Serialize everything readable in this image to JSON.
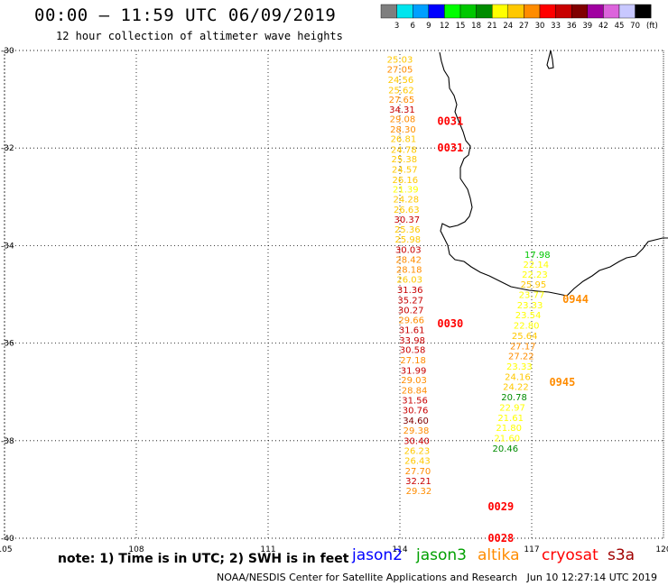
{
  "header": {
    "title": "00:00 – 11:59 UTC 06/09/2019",
    "subtitle": "12 hour collection of altimeter wave heights"
  },
  "legend": {
    "unit": "(ft)",
    "bins": [
      {
        "label": "3",
        "color": "#7f7f7f"
      },
      {
        "label": "6",
        "color": "#00e5ee"
      },
      {
        "label": "9",
        "color": "#00a0ff"
      },
      {
        "label": "12",
        "color": "#0000ff"
      },
      {
        "label": "15",
        "color": "#00ff00"
      },
      {
        "label": "18",
        "color": "#00c800"
      },
      {
        "label": "21",
        "color": "#008c00"
      },
      {
        "label": "24",
        "color": "#ffff00"
      },
      {
        "label": "27",
        "color": "#ffc800"
      },
      {
        "label": "30",
        "color": "#ff8c00"
      },
      {
        "label": "33",
        "color": "#ff0000"
      },
      {
        "label": "36",
        "color": "#c80000"
      },
      {
        "label": "39",
        "color": "#800000"
      },
      {
        "label": "42",
        "color": "#a000a0"
      },
      {
        "label": "45",
        "color": "#dc64dc"
      },
      {
        "label": "70",
        "color": "#c8c8ff"
      },
      {
        "label": "",
        "color": "#000000"
      }
    ]
  },
  "map": {
    "lon_range": [
      105,
      120
    ],
    "lat_range": [
      -40,
      -30
    ],
    "lon_ticks": [
      "105",
      "108",
      "111",
      "114",
      "117",
      "120"
    ],
    "lat_ticks": [
      "-30",
      "-32",
      "-34",
      "-36",
      "-38",
      "-40"
    ],
    "grid": true,
    "time_labels": [
      {
        "text": "0031",
        "lon": 114.85,
        "lat": -31.45,
        "color": "#ff0000"
      },
      {
        "text": "0031",
        "lon": 114.85,
        "lat": -32.0,
        "color": "#ff0000"
      },
      {
        "text": "0030",
        "lon": 114.85,
        "lat": -35.6,
        "color": "#ff0000"
      },
      {
        "text": "0029",
        "lon": 116.0,
        "lat": -39.35,
        "color": "#ff0000"
      },
      {
        "text": "0028",
        "lon": 116.0,
        "lat": -40.0,
        "color": "#ff0000"
      },
      {
        "text": "0944",
        "lon": 117.7,
        "lat": -35.1,
        "color": "#ff8c00"
      },
      {
        "text": "0945",
        "lon": 117.4,
        "lat": -36.8,
        "color": "#ff8c00"
      }
    ],
    "tracks": [
      {
        "name": "track-west",
        "points": [
          {
            "v": "25.03",
            "lon": 114.0,
            "lat": -30.18,
            "color": "#ffc800"
          },
          {
            "v": "27.05",
            "lon": 114.0,
            "lat": -30.38,
            "color": "#ff8c00"
          },
          {
            "v": "24.56",
            "lon": 114.02,
            "lat": -30.59,
            "color": "#ffc800"
          },
          {
            "v": "25.62",
            "lon": 114.03,
            "lat": -30.8,
            "color": "#ffc800"
          },
          {
            "v": "27.65",
            "lon": 114.04,
            "lat": -31.0,
            "color": "#ff8c00"
          },
          {
            "v": "34.31",
            "lon": 114.05,
            "lat": -31.2,
            "color": "#c80000"
          },
          {
            "v": "29.08",
            "lon": 114.06,
            "lat": -31.4,
            "color": "#ff8c00"
          },
          {
            "v": "28.30",
            "lon": 114.07,
            "lat": -31.61,
            "color": "#ff8c00"
          },
          {
            "v": "26.81",
            "lon": 114.08,
            "lat": -31.8,
            "color": "#ffc800"
          },
          {
            "v": "24.78",
            "lon": 114.09,
            "lat": -32.02,
            "color": "#ffc800"
          },
          {
            "v": "25.38",
            "lon": 114.1,
            "lat": -32.22,
            "color": "#ffc800"
          },
          {
            "v": "24.57",
            "lon": 114.11,
            "lat": -32.43,
            "color": "#ffc800"
          },
          {
            "v": "26.16",
            "lon": 114.12,
            "lat": -32.64,
            "color": "#ffc800"
          },
          {
            "v": "21.39",
            "lon": 114.13,
            "lat": -32.84,
            "color": "#ffff00"
          },
          {
            "v": "24.28",
            "lon": 114.14,
            "lat": -33.04,
            "color": "#ffc800"
          },
          {
            "v": "26.63",
            "lon": 114.15,
            "lat": -33.25,
            "color": "#ffc800"
          },
          {
            "v": "30.37",
            "lon": 114.16,
            "lat": -33.46,
            "color": "#c80000"
          },
          {
            "v": "25.36",
            "lon": 114.17,
            "lat": -33.66,
            "color": "#ffc800"
          },
          {
            "v": "25.98",
            "lon": 114.18,
            "lat": -33.86,
            "color": "#ffc800"
          },
          {
            "v": "30.03",
            "lon": 114.19,
            "lat": -34.08,
            "color": "#c80000"
          },
          {
            "v": "28.42",
            "lon": 114.2,
            "lat": -34.28,
            "color": "#ff8c00"
          },
          {
            "v": "28.18",
            "lon": 114.21,
            "lat": -34.48,
            "color": "#ff8c00"
          },
          {
            "v": "26.03",
            "lon": 114.22,
            "lat": -34.69,
            "color": "#ffc800"
          },
          {
            "v": "31.36",
            "lon": 114.23,
            "lat": -34.9,
            "color": "#c80000"
          },
          {
            "v": "35.27",
            "lon": 114.24,
            "lat": -35.11,
            "color": "#c80000"
          },
          {
            "v": "30.27",
            "lon": 114.25,
            "lat": -35.31,
            "color": "#c80000"
          },
          {
            "v": "29.66",
            "lon": 114.26,
            "lat": -35.52,
            "color": "#ff8c00"
          },
          {
            "v": "31.61",
            "lon": 114.27,
            "lat": -35.72,
            "color": "#c80000"
          },
          {
            "v": "33.98",
            "lon": 114.28,
            "lat": -35.93,
            "color": "#c80000"
          },
          {
            "v": "30.58",
            "lon": 114.29,
            "lat": -36.13,
            "color": "#c80000"
          },
          {
            "v": "27.18",
            "lon": 114.3,
            "lat": -36.34,
            "color": "#ff8c00"
          },
          {
            "v": "31.99",
            "lon": 114.31,
            "lat": -36.55,
            "color": "#c80000"
          },
          {
            "v": "29.03",
            "lon": 114.32,
            "lat": -36.75,
            "color": "#ff8c00"
          },
          {
            "v": "28.84",
            "lon": 114.33,
            "lat": -36.96,
            "color": "#ff8c00"
          },
          {
            "v": "31.56",
            "lon": 114.34,
            "lat": -37.16,
            "color": "#c80000"
          },
          {
            "v": "30.76",
            "lon": 114.35,
            "lat": -37.37,
            "color": "#c80000"
          },
          {
            "v": "34.60",
            "lon": 114.36,
            "lat": -37.58,
            "color": "#800000"
          },
          {
            "v": "29.38",
            "lon": 114.37,
            "lat": -37.78,
            "color": "#ff8c00"
          },
          {
            "v": "30.40",
            "lon": 114.38,
            "lat": -37.99,
            "color": "#c80000"
          },
          {
            "v": "26.23",
            "lon": 114.39,
            "lat": -38.2,
            "color": "#ffc800"
          },
          {
            "v": "26.43",
            "lon": 114.4,
            "lat": -38.4,
            "color": "#ffc800"
          },
          {
            "v": "27.70",
            "lon": 114.41,
            "lat": -38.61,
            "color": "#ff8c00"
          },
          {
            "v": "32.21",
            "lon": 114.42,
            "lat": -38.82,
            "color": "#c80000"
          },
          {
            "v": "29.32",
            "lon": 114.43,
            "lat": -39.02,
            "color": "#ff8c00"
          }
        ]
      },
      {
        "name": "track-east",
        "points": [
          {
            "v": "17.98",
            "lon": 117.13,
            "lat": -34.18,
            "color": "#00c800"
          },
          {
            "v": "22.14",
            "lon": 117.1,
            "lat": -34.38,
            "color": "#ffff00"
          },
          {
            "v": "22.23",
            "lon": 117.07,
            "lat": -34.58,
            "color": "#ffff00"
          },
          {
            "v": "25.95",
            "lon": 117.04,
            "lat": -34.79,
            "color": "#ffc800"
          },
          {
            "v": "23.77",
            "lon": 117.0,
            "lat": -35.0,
            "color": "#ffff00"
          },
          {
            "v": "23.33",
            "lon": 116.96,
            "lat": -35.21,
            "color": "#ffff00"
          },
          {
            "v": "23.54",
            "lon": 116.92,
            "lat": -35.42,
            "color": "#ffff00"
          },
          {
            "v": "22.80",
            "lon": 116.88,
            "lat": -35.63,
            "color": "#ffff00"
          },
          {
            "v": "25.64",
            "lon": 116.84,
            "lat": -35.84,
            "color": "#ffc800"
          },
          {
            "v": "27.17",
            "lon": 116.8,
            "lat": -36.05,
            "color": "#ff8c00"
          },
          {
            "v": "27.22",
            "lon": 116.76,
            "lat": -36.26,
            "color": "#ff8c00"
          },
          {
            "v": "23.33",
            "lon": 116.72,
            "lat": -36.47,
            "color": "#ffff00"
          },
          {
            "v": "24.16",
            "lon": 116.68,
            "lat": -36.68,
            "color": "#ffc800"
          },
          {
            "v": "24.22",
            "lon": 116.64,
            "lat": -36.89,
            "color": "#ffc800"
          },
          {
            "v": "20.78",
            "lon": 116.6,
            "lat": -37.1,
            "color": "#008c00"
          },
          {
            "v": "22.97",
            "lon": 116.56,
            "lat": -37.31,
            "color": "#ffff00"
          },
          {
            "v": "21.61",
            "lon": 116.52,
            "lat": -37.52,
            "color": "#ffff00"
          },
          {
            "v": "21.80",
            "lon": 116.48,
            "lat": -37.73,
            "color": "#ffff00"
          },
          {
            "v": "21.60",
            "lon": 116.44,
            "lat": -37.94,
            "color": "#ffff00"
          },
          {
            "v": "20.46",
            "lon": 116.4,
            "lat": -38.15,
            "color": "#008c00"
          }
        ]
      }
    ]
  },
  "footer": {
    "note": "note:  1) Time is in UTC;  2) SWH is in feet",
    "satellites": [
      {
        "name": "jason2",
        "color": "#0000ff"
      },
      {
        "name": "jason3",
        "color": "#00a000"
      },
      {
        "name": "altika",
        "color": "#ff8c00"
      },
      {
        "name": "cryosat",
        "color": "#ff0000"
      },
      {
        "name": "s3a",
        "color": "#a00000"
      }
    ],
    "credit": "NOAA/NESDIS Center for Satellite Applications and Research",
    "timestamp": "Jun 10 12:27:14 UTC 2019"
  }
}
